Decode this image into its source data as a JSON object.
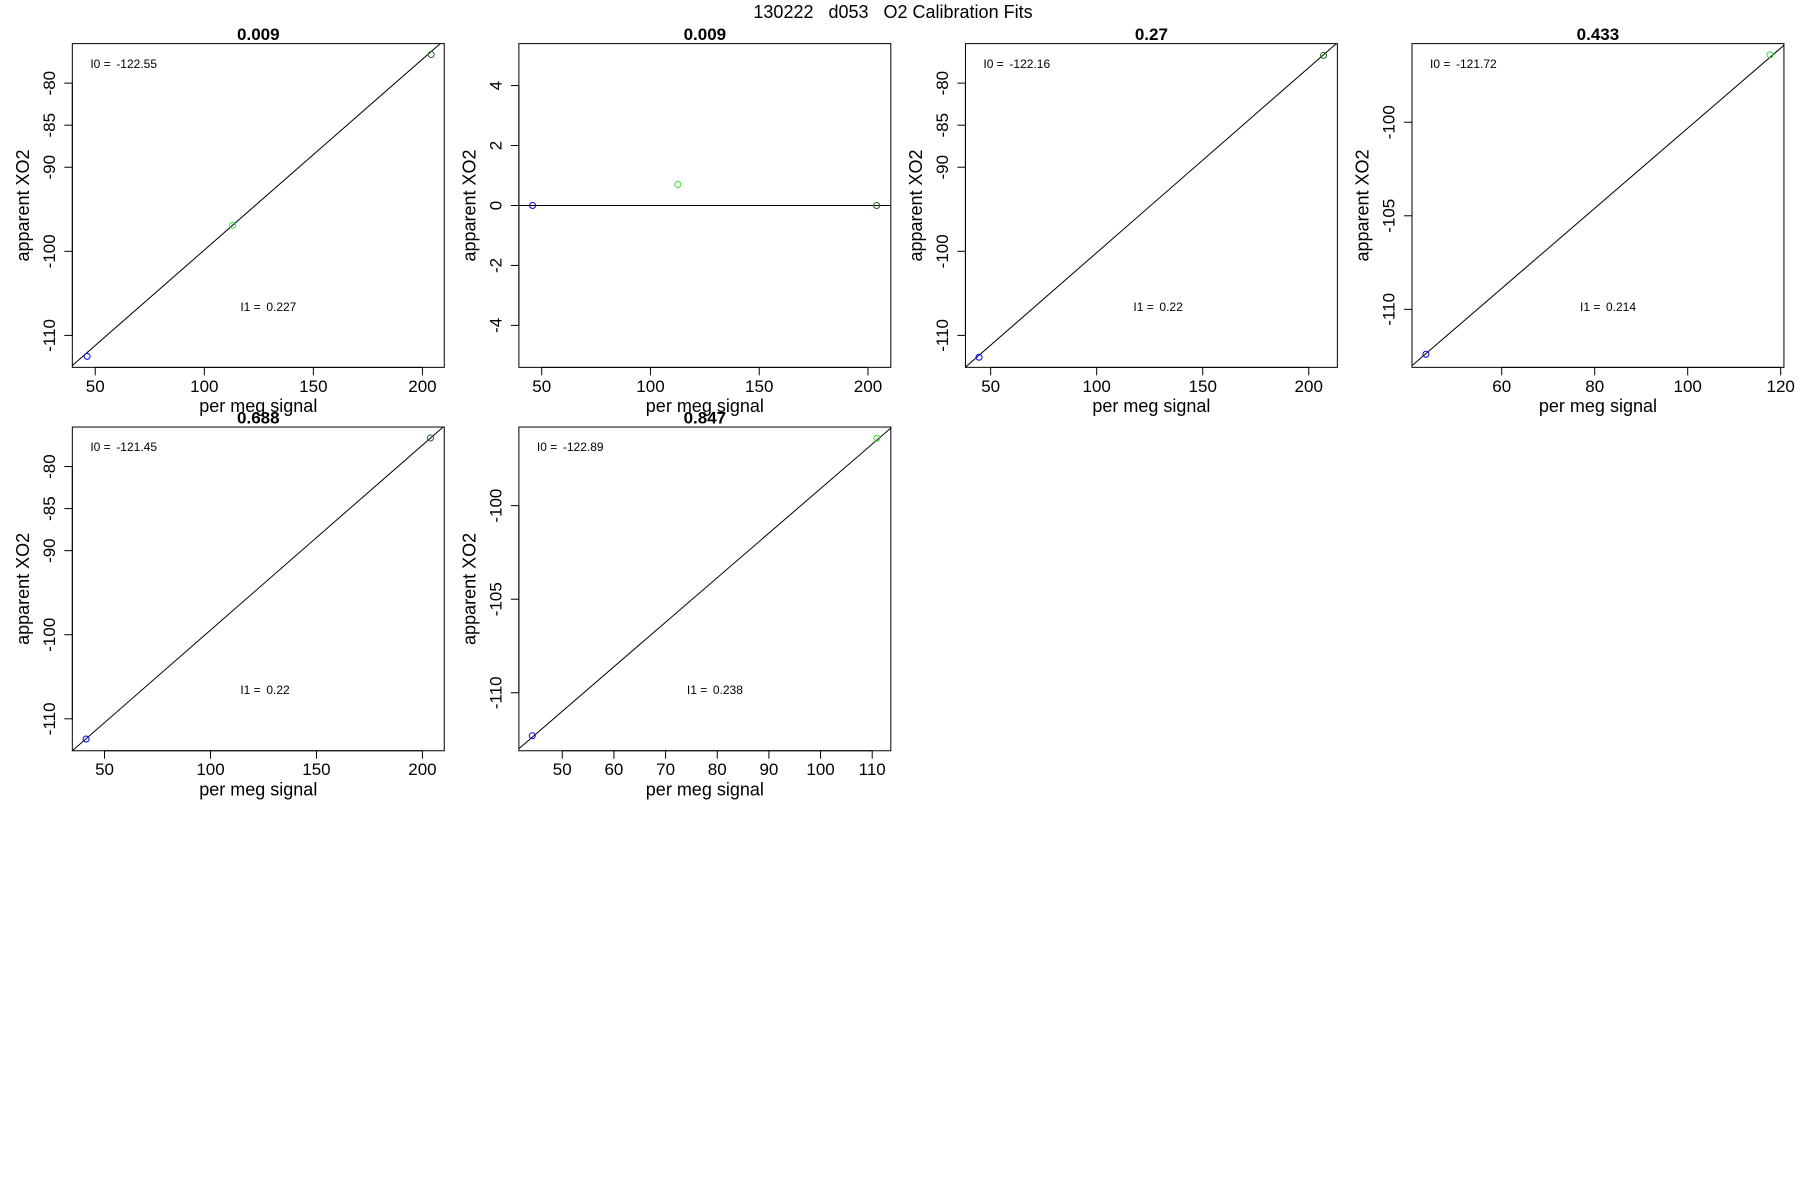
{
  "title": "130222   d053   O2 Calibration Fits",
  "chart_data": [
    {
      "type": "scatter",
      "title": "0.009",
      "xlabel": "per meg signal",
      "ylabel": "apparent XO2",
      "xlim": [
        39.5,
        210
      ],
      "ylim": [
        -113.8,
        -75.3
      ],
      "xticks": [
        50,
        100,
        150,
        200
      ],
      "yticks": [
        -110,
        -100,
        -90,
        -85,
        -80
      ],
      "points": {
        "x": [
          46.3,
          113,
          204
        ],
        "y": [
          -112.5,
          -96.9,
          -76.6
        ],
        "colors": [
          "#0000ff",
          "#33dd33",
          "#1a6a1a"
        ]
      },
      "line_color": "#000000",
      "annotations": [
        {
          "label": "I0 =",
          "value": -122.55
        },
        {
          "label": "I1 =",
          "value": 0.227
        }
      ]
    },
    {
      "type": "scatter",
      "title": "0.009",
      "xlabel": "per meg signal",
      "ylabel": "apparent XO2",
      "xlim": [
        39.5,
        210.5
      ],
      "ylim": [
        -5.4,
        5.4
      ],
      "xticks": [
        50,
        100,
        150,
        200
      ],
      "yticks": [
        -4,
        -2,
        0,
        2,
        4
      ],
      "points": {
        "x": [
          45.8,
          112.6,
          204
        ],
        "y": [
          0,
          0.7,
          0
        ],
        "colors": [
          "#0000ff",
          "#33dd33",
          "#1a6a1a"
        ]
      },
      "line_color": "#000000",
      "hline": 0
    },
    {
      "type": "scatter",
      "title": "0.27",
      "xlabel": "per meg signal",
      "ylabel": "apparent XO2",
      "xlim": [
        38.1,
        213.5
      ],
      "ylim": [
        -113.8,
        -75.3
      ],
      "xticks": [
        50,
        100,
        150,
        200
      ],
      "yticks": [
        -110,
        -100,
        -90,
        -85,
        -80
      ],
      "points": {
        "x": [
          44.5,
          207
        ],
        "y": [
          -112.6,
          -76.7
        ],
        "colors": [
          "#0000ff",
          "#1a6a1a"
        ]
      },
      "line_color": "#000000",
      "annotations": [
        {
          "label": "I0 =",
          "value": -122.16
        },
        {
          "label": "I1 =",
          "value": 0.22
        }
      ]
    },
    {
      "type": "scatter",
      "title": "0.433",
      "xlabel": "per meg signal",
      "ylabel": "apparent XO2",
      "xlim": [
        40.7,
        120.7
      ],
      "ylim": [
        -113.1,
        -95.8
      ],
      "xticks": [
        60,
        80,
        100,
        120
      ],
      "yticks": [
        -110,
        -105,
        -100
      ],
      "points": {
        "x": [
          43.7,
          117.7
        ],
        "y": [
          -112.4,
          -96.4
        ],
        "colors": [
          "#0000ff",
          "#33dd33"
        ]
      },
      "line_color": "#000000",
      "annotations": [
        {
          "label": "I0 =",
          "value": -121.72
        },
        {
          "label": "I1 =",
          "value": 0.214
        }
      ]
    },
    {
      "type": "scatter",
      "title": "0.688",
      "xlabel": "per meg signal",
      "ylabel": "apparent XO2",
      "xlim": [
        34.8,
        210.3
      ],
      "ylim": [
        -113.8,
        -75.3
      ],
      "xticks": [
        50,
        100,
        150,
        200
      ],
      "yticks": [
        -110,
        -100,
        -90,
        -85,
        -80
      ],
      "points": {
        "x": [
          41.3,
          203.8
        ],
        "y": [
          -112.4,
          -76.6
        ],
        "colors": [
          "#0000ff",
          "#1a6a1a"
        ]
      },
      "line_color": "#000000",
      "annotations": [
        {
          "label": "I0 =",
          "value": -121.45
        },
        {
          "label": "I1 =",
          "value": 0.22
        }
      ]
    },
    {
      "type": "scatter",
      "title": "0.847",
      "xlabel": "per meg signal",
      "ylabel": "apparent XO2",
      "xlim": [
        41.6,
        113.6
      ],
      "ylim": [
        -113.1,
        -95.8
      ],
      "xticks": [
        50,
        60,
        70,
        80,
        90,
        100,
        110
      ],
      "yticks": [
        -110,
        -105,
        -100
      ],
      "points": {
        "x": [
          44.2,
          110.9
        ],
        "y": [
          -112.3,
          -96.4
        ],
        "colors": [
          "#0000ff",
          "#33dd33"
        ]
      },
      "line_color": "#000000",
      "annotations": [
        {
          "label": "I0 =",
          "value": -122.89
        },
        {
          "label": "I1 =",
          "value": 0.238
        }
      ]
    }
  ]
}
